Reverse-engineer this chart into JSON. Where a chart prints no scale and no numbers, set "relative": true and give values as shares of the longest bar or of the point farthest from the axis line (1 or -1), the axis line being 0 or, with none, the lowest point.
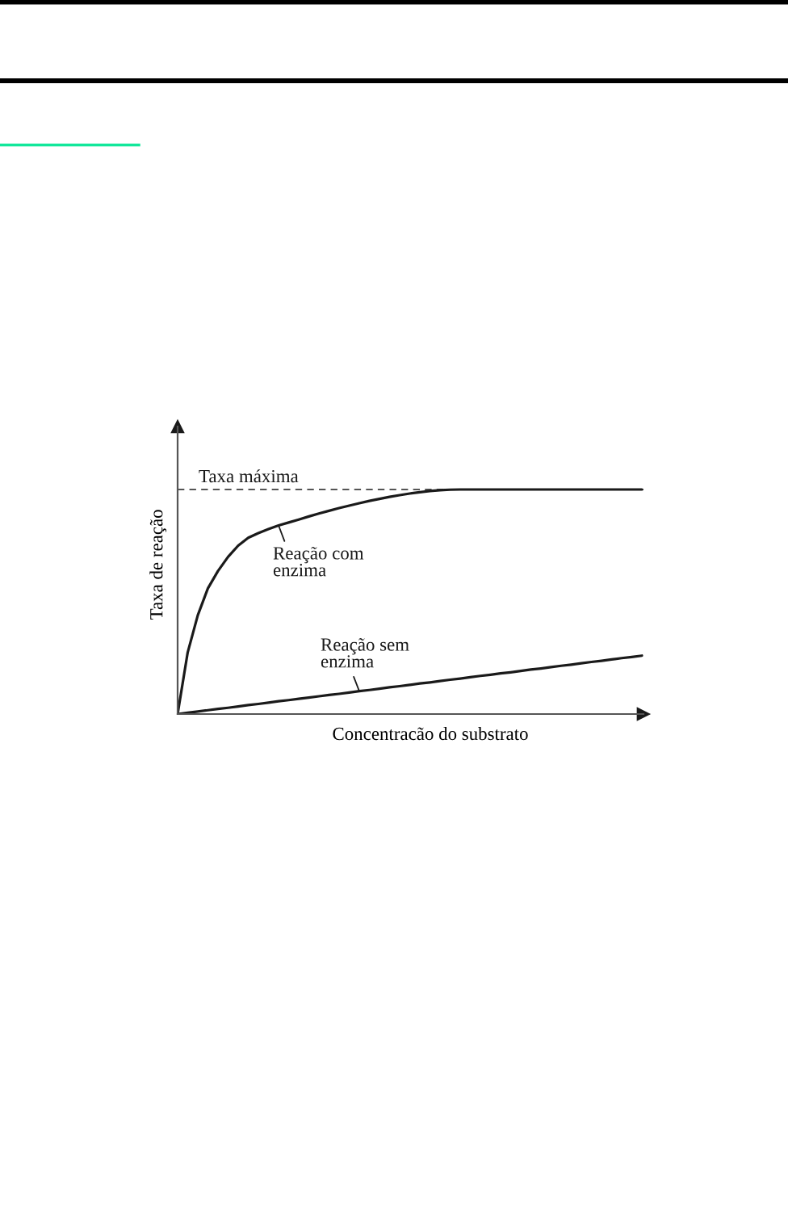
{
  "chart_data": {
    "type": "line",
    "relative": true,
    "xlabel": "Concentracão do substrato",
    "ylabel": "Taxa de reação",
    "categories": [
      null,
      null,
      null,
      null,
      null,
      null,
      null,
      null,
      null,
      null,
      null,
      null,
      null,
      null,
      null,
      null,
      null,
      null,
      null,
      null,
      null,
      null,
      null,
      null,
      null,
      null,
      null,
      null,
      null,
      null,
      null,
      null,
      null,
      null,
      null,
      null,
      null,
      null,
      null,
      null,
      null,
      null,
      null,
      null,
      null,
      null,
      null
    ],
    "series": [
      {
        "name": "Reação com enzima",
        "color": "#1a1a1a",
        "values": [
          0,
          0.275,
          0.44,
          0.56,
          0.637,
          0.7,
          0.75,
          0.785,
          0.806,
          0.824,
          0.84,
          0.853,
          0.866,
          0.88,
          0.893,
          0.905,
          0.917,
          0.928,
          0.939,
          0.949,
          0.958,
          0.967,
          0.975,
          0.982,
          0.988,
          0.993,
          0.997,
          0.999,
          1.0,
          1.0,
          1.0,
          1.0,
          1.0,
          1.0,
          1.0,
          1.0,
          1.0,
          1.0,
          1.0,
          1.0,
          1.0,
          1.0,
          1.0,
          1.0,
          1.0,
          1.0,
          1.0
        ]
      },
      {
        "name": "Reação sem enzima",
        "color": "#1a1a1a",
        "values": [
          0,
          0.006,
          0.011,
          0.017,
          0.023,
          0.028,
          0.034,
          0.04,
          0.045,
          0.051,
          0.057,
          0.062,
          0.068,
          0.073,
          0.079,
          0.085,
          0.09,
          0.096,
          0.102,
          0.107,
          0.113,
          0.119,
          0.124,
          0.13,
          0.136,
          0.141,
          0.147,
          0.153,
          0.158,
          0.164,
          0.17,
          0.175,
          0.181,
          0.186,
          0.192,
          0.198,
          0.203,
          0.209,
          0.215,
          0.22,
          0.226,
          0.232,
          0.237,
          0.243,
          0.249,
          0.254,
          0.26
        ]
      }
    ],
    "ref_lines": [
      {
        "axis": "y",
        "value": 1,
        "label": "Taxa máxima",
        "color": "#555555",
        "line_style": "dashed"
      }
    ]
  }
}
